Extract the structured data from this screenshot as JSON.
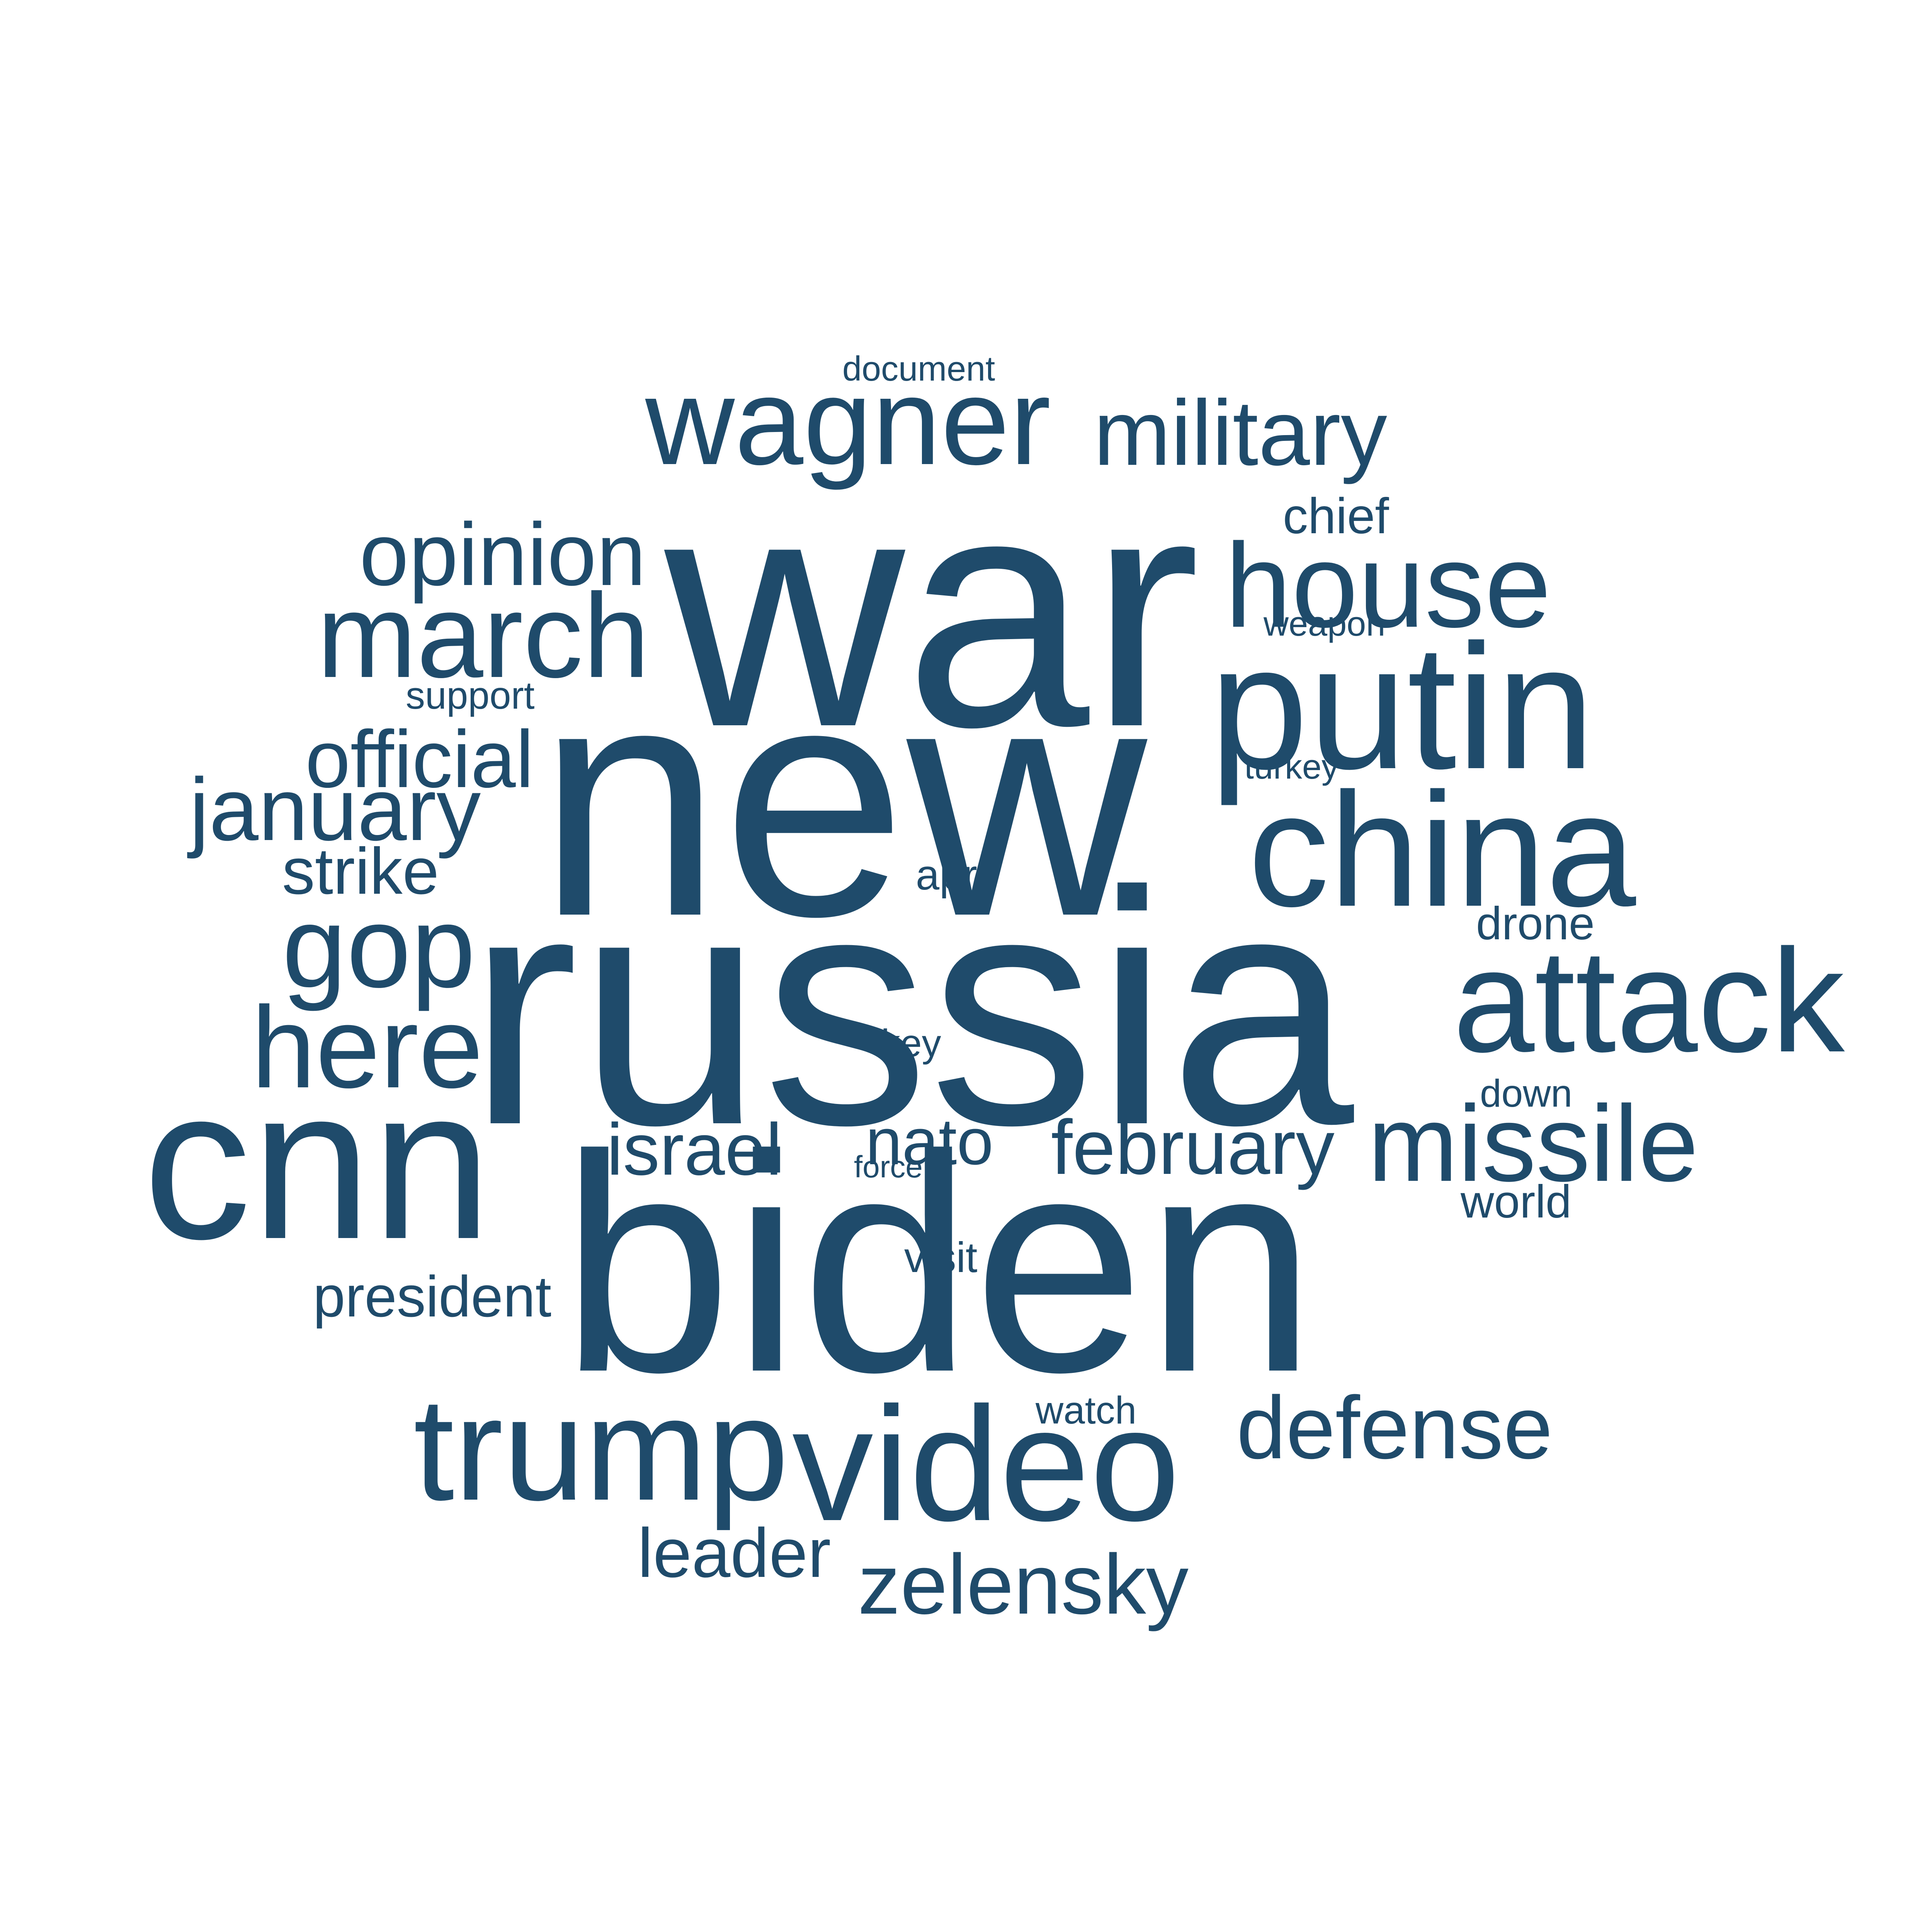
{
  "cloud": {
    "color": "#1f4b6b",
    "words": [
      {
        "text": "war",
        "weight": 1.0
      },
      {
        "text": "new",
        "weight": 1.0
      },
      {
        "text": "russia",
        "weight": 1.0
      },
      {
        "text": "biden",
        "weight": 0.95
      },
      {
        "text": "cnn",
        "weight": 0.7
      },
      {
        "text": "putin",
        "weight": 0.55
      },
      {
        "text": "china",
        "weight": 0.5
      },
      {
        "text": "video",
        "weight": 0.5
      },
      {
        "text": "attack",
        "weight": 0.45
      },
      {
        "text": "trump",
        "weight": 0.45
      },
      {
        "text": "wagner",
        "weight": 0.4
      },
      {
        "text": "house",
        "weight": 0.4
      },
      {
        "text": "march",
        "weight": 0.4
      },
      {
        "text": "gop",
        "weight": 0.35
      },
      {
        "text": "here",
        "weight": 0.35
      },
      {
        "text": "missile",
        "weight": 0.33
      },
      {
        "text": "military",
        "weight": 0.3
      },
      {
        "text": "opinion",
        "weight": 0.3
      },
      {
        "text": "january",
        "weight": 0.3
      },
      {
        "text": "defense",
        "weight": 0.3
      },
      {
        "text": "zelensky",
        "weight": 0.28
      },
      {
        "text": "official",
        "weight": 0.27
      },
      {
        "text": "february",
        "weight": 0.25
      },
      {
        "text": "israel",
        "weight": 0.25
      },
      {
        "text": "nato",
        "weight": 0.23
      },
      {
        "text": "leader",
        "weight": 0.22
      },
      {
        "text": "strike",
        "weight": 0.2
      },
      {
        "text": "president",
        "weight": 0.18
      },
      {
        "text": "chief",
        "weight": 0.15
      },
      {
        "text": "drone",
        "weight": 0.14
      },
      {
        "text": "world",
        "weight": 0.14
      },
      {
        "text": "visit",
        "weight": 0.14
      },
      {
        "text": "watch",
        "weight": 0.13
      },
      {
        "text": "april",
        "weight": 0.13
      },
      {
        "text": "down",
        "weight": 0.12
      },
      {
        "text": "support",
        "weight": 0.12
      },
      {
        "text": "key",
        "weight": 0.12
      },
      {
        "text": "turkey",
        "weight": 0.11
      },
      {
        "text": "weapon",
        "weight": 0.11
      },
      {
        "text": "document",
        "weight": 0.1
      },
      {
        "text": "force",
        "weight": 0.1
      }
    ]
  }
}
